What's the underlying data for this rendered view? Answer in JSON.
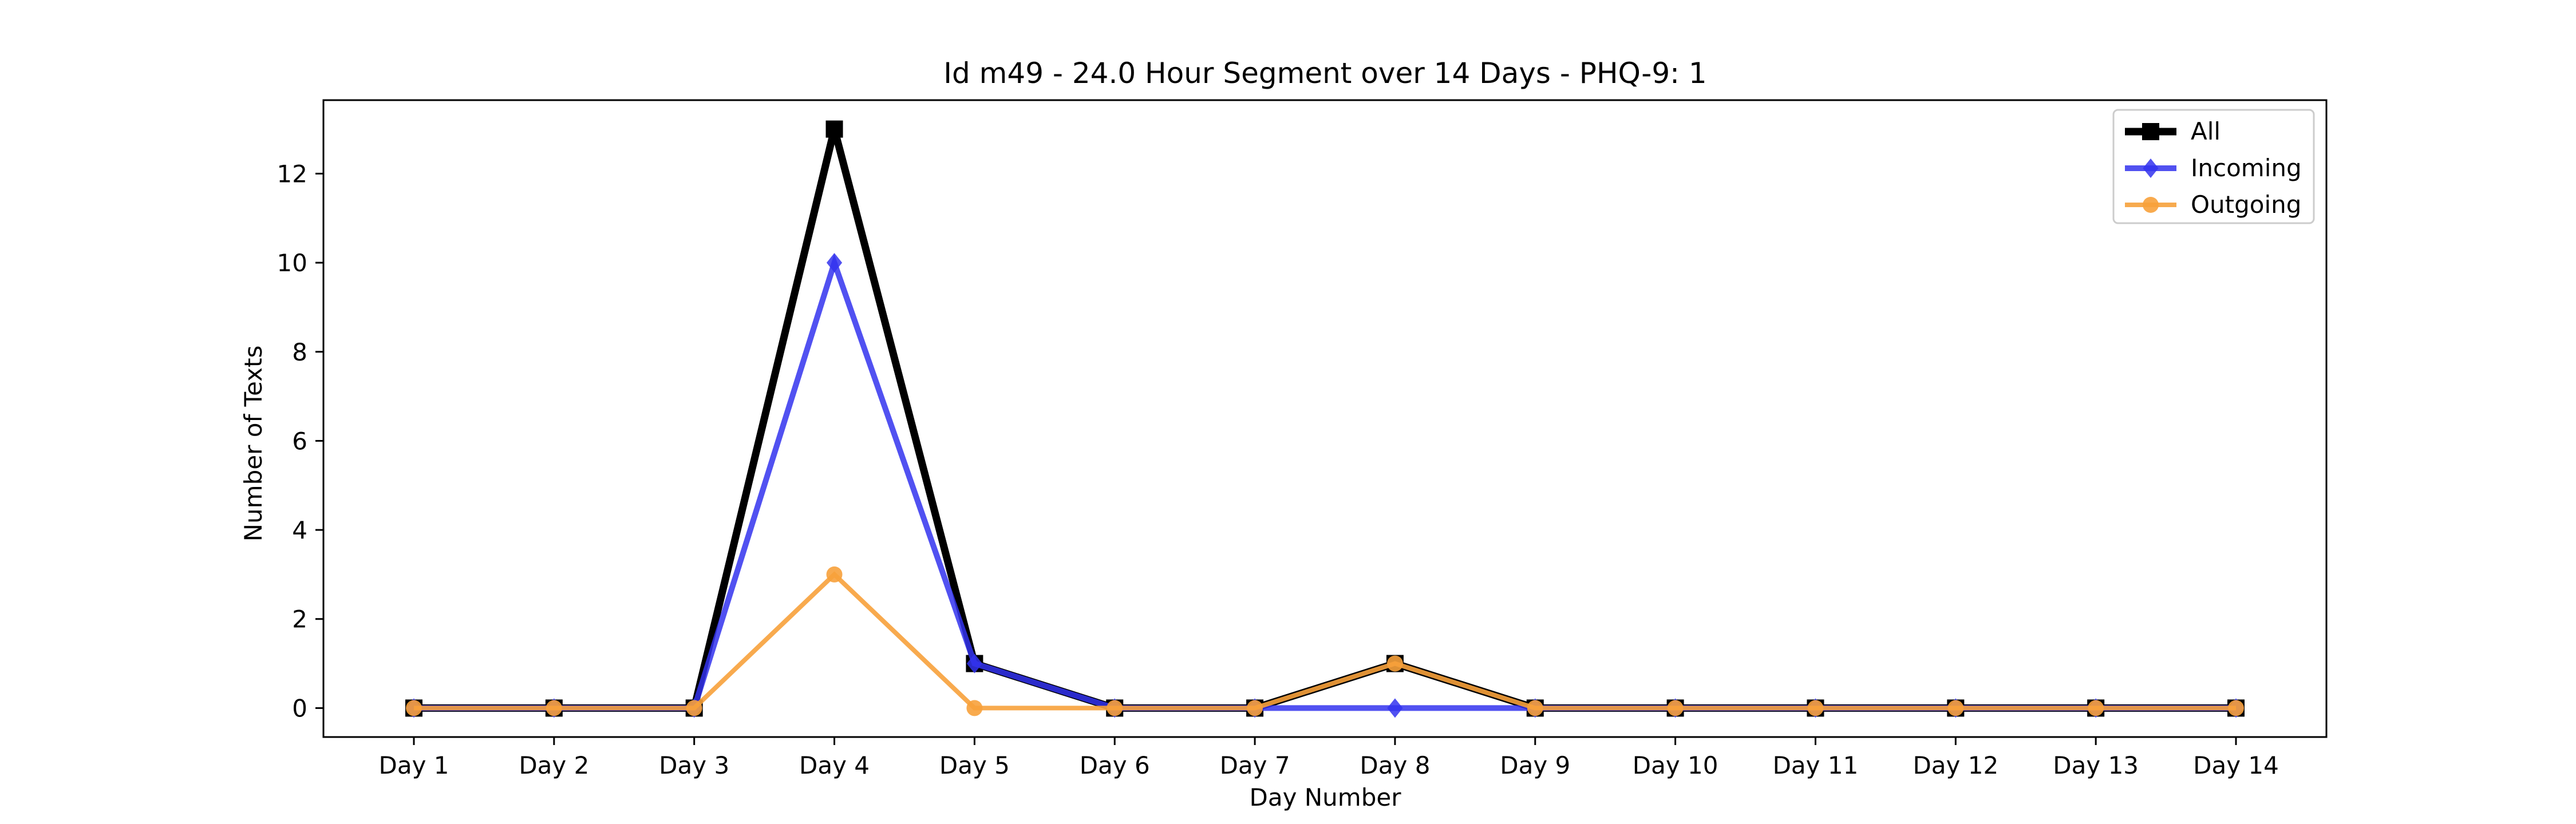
{
  "chart_data": {
    "type": "line",
    "title": "Id m49 - 24.0 Hour Segment over 14 Days - PHQ-9: 1",
    "xlabel": "Day Number",
    "ylabel": "Number of Texts",
    "categories": [
      "Day 1",
      "Day 2",
      "Day 3",
      "Day 4",
      "Day 5",
      "Day 6",
      "Day 7",
      "Day 8",
      "Day 9",
      "Day 10",
      "Day 11",
      "Day 12",
      "Day 13",
      "Day 14"
    ],
    "ylim": [
      -0.65,
      13.65
    ],
    "yticks": [
      0,
      2,
      4,
      6,
      8,
      10,
      12
    ],
    "grid": false,
    "legend_position": "upper-right",
    "series": [
      {
        "name": "All",
        "values": [
          0,
          0,
          0,
          13,
          1,
          0,
          0,
          1,
          0,
          0,
          0,
          0,
          0,
          0
        ],
        "color": "#000000",
        "marker": "square"
      },
      {
        "name": "Incoming",
        "values": [
          0,
          0,
          0,
          10,
          1,
          0,
          0,
          0,
          0,
          0,
          0,
          0,
          0,
          0
        ],
        "color": "#3333ee",
        "marker": "diamond"
      },
      {
        "name": "Outgoing",
        "values": [
          0,
          0,
          0,
          3,
          0,
          0,
          0,
          1,
          0,
          0,
          0,
          0,
          0,
          0
        ],
        "color": "#f7a13b",
        "marker": "circle"
      }
    ]
  }
}
